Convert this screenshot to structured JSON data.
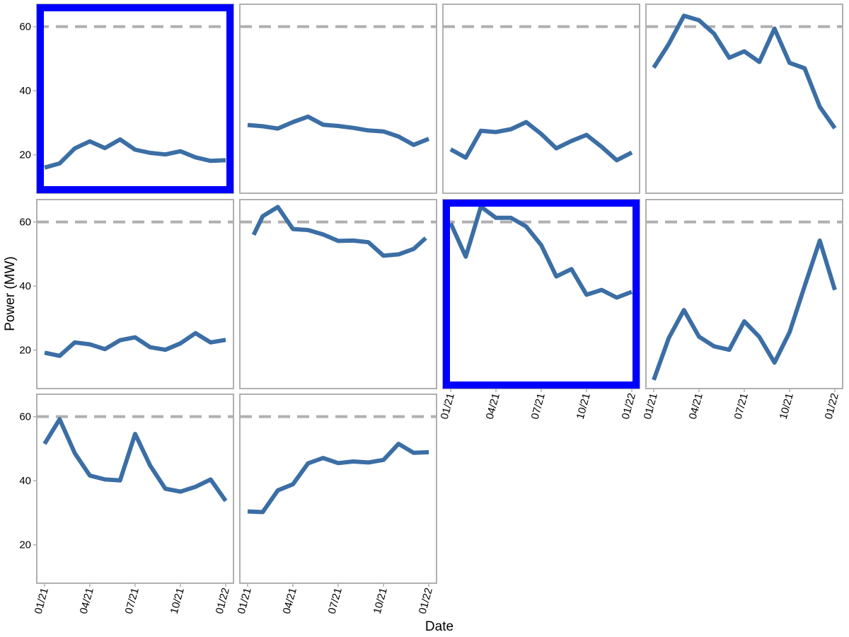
{
  "chart_data": {
    "type": "line",
    "layout": "small-multiples",
    "xlabel": "Date",
    "ylabel": "Power (MW)",
    "x_tick_labels": [
      "01/21",
      "04/21",
      "07/21",
      "10/21",
      "01/22"
    ],
    "y_tick_labels": [
      "20",
      "40",
      "60"
    ],
    "ylim": [
      8,
      67
    ],
    "y_ticks": [
      20,
      40,
      60
    ],
    "x_range_months": [
      0,
      12
    ],
    "reference_line": {
      "y": 60,
      "style": "dashed",
      "color": "#b0b0b0"
    },
    "line_color": "#3b6ea5",
    "highlight_color": "#0000ff",
    "x_months": [
      0,
      1,
      2,
      3,
      4,
      5,
      6,
      7,
      8,
      9,
      10,
      11,
      12
    ],
    "panels": [
      {
        "values": [
          16,
          17.3,
          22,
          24.2,
          22.1,
          24.8,
          21.6,
          20.6,
          20.1,
          21.1,
          19.2,
          18.1,
          18.3
        ],
        "highlighted": true
      },
      {
        "values": [
          29.3,
          28.9,
          28.2,
          30.2,
          31.9,
          29.4,
          29,
          28.4,
          27.6,
          27.3,
          25.7,
          23.1,
          25
        ],
        "highlighted": false
      },
      {
        "values": [
          21.7,
          19.1,
          27.5,
          27.1,
          28,
          30.2,
          26.5,
          22,
          24.3,
          26.2,
          22.5,
          18.3,
          20.7
        ],
        "highlighted": false
      },
      {
        "values": [
          47.2,
          54.6,
          63.4,
          62,
          57.8,
          50.3,
          52.3,
          49,
          59.4,
          48.7,
          47,
          35,
          28.3
        ],
        "highlighted": false
      },
      {
        "values": [
          19.2,
          18.2,
          22.4,
          21.8,
          20.3,
          23.1,
          24,
          20.9,
          20.1,
          22.1,
          25.3,
          22.4,
          23.2
        ],
        "highlighted": false
      },
      {
        "values": [
          null,
          56,
          61.8,
          64.7,
          57.8,
          57.5,
          56.1,
          54.1,
          54.2,
          53.7,
          49.5,
          49.9,
          51.6,
          55
        ],
        "highlighted": false,
        "x_months": [
          0,
          0.4,
          1,
          2,
          3,
          4,
          5,
          6,
          7,
          8,
          9,
          10,
          11,
          11.8
        ]
      },
      {
        "values": [
          59.6,
          49.2,
          64.8,
          61.3,
          61.3,
          58.6,
          52.8,
          43,
          45.3,
          37.3,
          38.8,
          36.4,
          38.2
        ],
        "highlighted": true
      },
      {
        "values": [
          10.7,
          23.8,
          32.5,
          24.2,
          21.2,
          20.1,
          29,
          24.1,
          16.1,
          25.6,
          40,
          54.2,
          38.8
        ],
        "highlighted": false
      },
      {
        "values": [
          51.5,
          59.2,
          48.6,
          41.6,
          40.4,
          40.1,
          54.6,
          44.7,
          37.5,
          36.6,
          38.1,
          40.4,
          33.7
        ],
        "highlighted": false
      },
      {
        "values": [
          30.4,
          30.2,
          37,
          38.9,
          45.4,
          47.1,
          45.5,
          46,
          45.7,
          46.5,
          51.5,
          48.7,
          48.9
        ],
        "highlighted": false
      }
    ]
  }
}
